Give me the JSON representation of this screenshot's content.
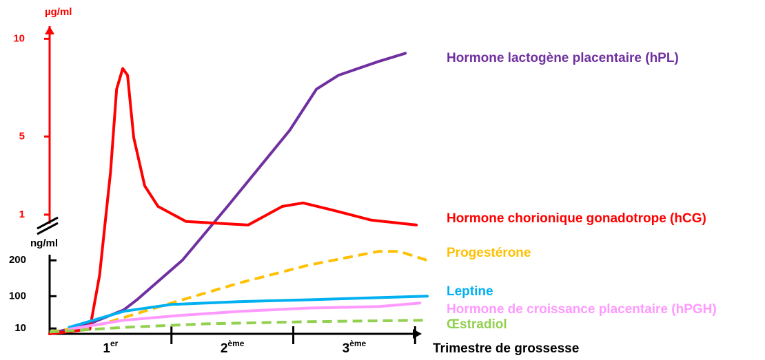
{
  "chart_data": {
    "type": "line",
    "y_axis_label": "µg/ml",
    "y2_axis_label": "ng/ml",
    "x_axis_label": "Trimestre de grossesse",
    "x_labels": [
      {
        "base": "1",
        "sup": "er"
      },
      {
        "base": "2",
        "sup": "ème"
      },
      {
        "base": "3",
        "sup": "ème"
      }
    ],
    "xlim": [
      0,
      3.1
    ],
    "xticks": [
      1,
      2,
      3
    ],
    "ylim": [
      -5.1,
      10.4
    ],
    "yticks": [
      1,
      5,
      10
    ],
    "y_color": "#ff0000",
    "y2lim": [
      -5,
      210
    ],
    "y2ticks": [
      10,
      100,
      200
    ],
    "series": [
      {
        "name": "Hormone lactogène placentaire (hPL)",
        "color": "#7030a0",
        "axis": "y",
        "dashed": false,
        "x": [
          0,
          0.33,
          0.61,
          0.72,
          1.09,
          1.46,
          1.97,
          2.19,
          2.37,
          2.7,
          2.92
        ],
        "values": [
          -5.1,
          -4.58,
          -3.87,
          -3.34,
          -1.33,
          1.42,
          5.31,
          7.42,
          8.13,
          8.84,
          9.26
        ]
      },
      {
        "name": "Hormone chorionique gonadotrope (hCG)",
        "color": "#ff0000",
        "axis": "y",
        "dashed": false,
        "x": [
          0,
          0.33,
          0.41,
          0.5,
          0.55,
          0.6,
          0.64,
          0.69,
          0.78,
          0.89,
          1.12,
          1.63,
          1.91,
          2.08,
          2.31,
          2.64,
          3.01
        ],
        "values": [
          -5.1,
          -4.86,
          -2.1,
          3.19,
          7.42,
          8.48,
          8.13,
          4.95,
          2.48,
          1.42,
          0.65,
          0.47,
          1.42,
          1.6,
          1.25,
          0.72,
          0.47
        ]
      },
      {
        "name": "Progestérone",
        "color": "#ffc000",
        "axis": "y2",
        "dashed": true,
        "x": [
          0,
          0.44,
          1.0,
          1.57,
          2.13,
          2.7,
          2.87,
          3.1
        ],
        "values": [
          0,
          23,
          81,
          138,
          187,
          225,
          225,
          200
        ]
      },
      {
        "name": "Leptine",
        "color": "#00b0f0",
        "axis": "y2",
        "dashed": false,
        "x": [
          0.16,
          0.61,
          1.0,
          1.57,
          2.13,
          2.7,
          3.1
        ],
        "values": [
          13,
          58,
          77,
          85,
          90,
          96,
          100
        ]
      },
      {
        "name": "Hormone de croissance placentaire (hPGH)",
        "color": "#ff99ff",
        "axis": "y2",
        "dashed": false,
        "x": [
          0.16,
          0.61,
          1.06,
          1.57,
          2.13,
          2.7,
          3.04
        ],
        "values": [
          8,
          33,
          46,
          58,
          67,
          71,
          81
        ]
      },
      {
        "name": "Œstradiol",
        "color": "#92d050",
        "axis": "y2",
        "dashed": true,
        "x": [
          0,
          0.61,
          1.29,
          2.13,
          3.1
        ],
        "values": [
          0,
          13,
          23,
          29,
          33
        ]
      }
    ]
  }
}
